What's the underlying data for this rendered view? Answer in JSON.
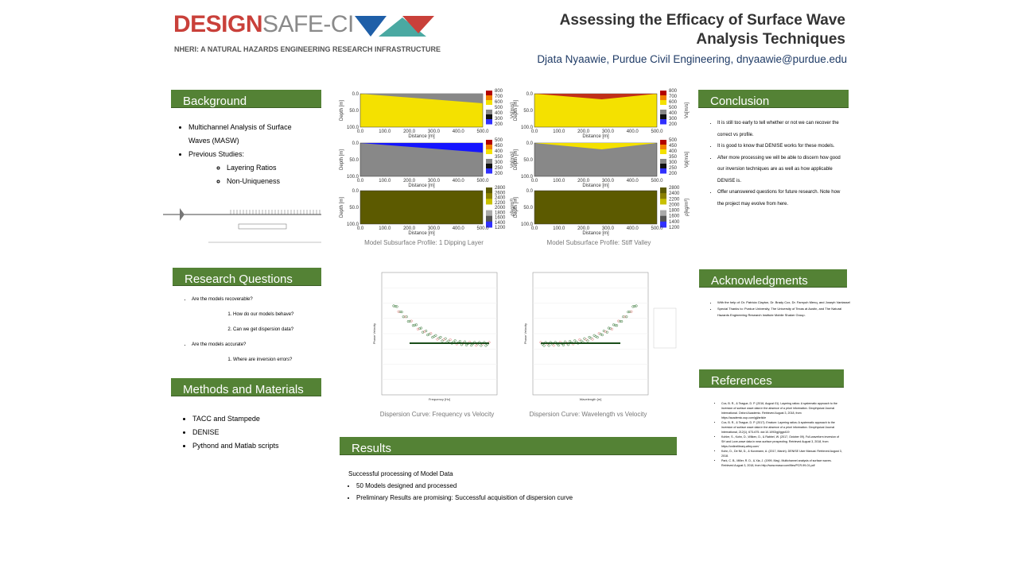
{
  "header": {
    "logo_design": "DESIGN",
    "logo_safe": "SAFE-CI",
    "logo_tagline": "NHERI: A NATURAL HAZARDS ENGINEERING RESEARCH INFRASTRUCTURE",
    "title": "Assessing the Efficacy of Surface Wave Analysis Techniques",
    "author": "Djata Nyaawie, Purdue Civil Engineering, dnyaawie@purdue.edu"
  },
  "background": {
    "heading": "Background",
    "items": [
      {
        "text": "Multichannel Analysis of Surface Waves (MASW)"
      },
      {
        "text": "Previous Studies:",
        "subitems": [
          "Layering Ratios",
          "Non-Uniqueness"
        ]
      }
    ]
  },
  "research_questions": {
    "heading": "Research Questions",
    "items": [
      {
        "text": "Are the models recoverable?",
        "subitems": [
          "How do our models behave?",
          "Can we get dispersion data?"
        ]
      },
      {
        "text": "Are the models accurate?",
        "subitems": [
          "Where are inversion errors?"
        ]
      }
    ]
  },
  "methods": {
    "heading": "Methods and Materials",
    "items": [
      "TACC and Stampede",
      "DENISE",
      "Pythond and Matlab scripts"
    ]
  },
  "profiles": {
    "depth_label": "Depth [m]",
    "distance_label": "Distance [m]",
    "distance_ticks": [
      "0.0",
      "100.0",
      "200.0",
      "300.0",
      "400.0",
      "500.0"
    ],
    "depth_ticks": [
      "0.0",
      "50.0",
      "100.0"
    ],
    "columns": [
      {
        "caption": "Model Subsurface Profile: 1 Dipping Layer",
        "panels": [
          {
            "unit": "Vs[m/s]",
            "ticks": [
              "800",
              "700",
              "600",
              "500",
              "400",
              "300",
              "200"
            ]
          },
          {
            "unit": "Vp[m/s]",
            "ticks": [
              "500",
              "450",
              "400",
              "350",
              "300",
              "250",
              "200"
            ]
          },
          {
            "unit": "ρ[kg/m³]",
            "ticks": [
              "2800",
              "2600",
              "2400",
              "2200",
              "2000",
              "1800",
              "1600",
              "1400",
              "1200"
            ]
          }
        ]
      },
      {
        "caption": "Model Subsurface Profile: Stiff Valley",
        "panels": [
          {
            "unit": "Vs[m/s]",
            "ticks": [
              "800",
              "700",
              "600",
              "500",
              "400",
              "300",
              "200"
            ]
          },
          {
            "unit": "Vp[m/s]",
            "ticks": [
              "500",
              "450",
              "400",
              "350",
              "300",
              "250",
              "200"
            ]
          },
          {
            "unit": "ρ[kg/m³]",
            "ticks": [
              "2800",
              "2400",
              "2200",
              "2000",
              "1800",
              "1600",
              "1400",
              "1200"
            ]
          }
        ]
      }
    ]
  },
  "dispersion": {
    "plots": [
      {
        "caption": "Dispersion Curve: Frequency vs Velocity",
        "x_label": "Frequency [Hz]",
        "y_label": "Phase Velocity"
      },
      {
        "caption": "Dispersion Curve: Wavelength vs Velocity",
        "x_label": "Wavelength [m]",
        "y_label": "Phase Velocity"
      }
    ]
  },
  "results": {
    "heading": "Results",
    "intro": "Successful processing of Model Data",
    "items": [
      "50 Models designed and processed",
      "Preliminary Results are promising: Successful acquisition of dispersion curve"
    ]
  },
  "conclusion": {
    "heading": "Conclusion",
    "items": [
      "It is still too early to tell whether or not we can recover the correct vs profile.",
      "It is good to know that DENISE works for these models.",
      "After more processing we will be able to discern how good our inversion techniques are as well as how applicable DENISE is.",
      "Offer unanswered questions for future research. Note how the project may evolve from here."
    ]
  },
  "acknowledgments": {
    "heading": "Acknowledgments",
    "items": [
      "With the help of: Dr. Patricia Clayton, Dr. Brady Cox, Dr. Farnyuh Menq, and Joseph Vantassel",
      "Special Thanks to: Purdue University, The University of Texas at Austin, and The Natural Hazards Engineering Research Institute Mobile Shaker Group."
    ]
  },
  "references": {
    "heading": "References",
    "items": [
      "Cox, B. R., & Teague, D. P. (2016, August 01). Layering ratios: A systematic approach to the inversion of surface wave data in the absence of a priori information. Geophysical Journal International. Oxford Academic. Retrieved August 3, 2018, from https://academic.oup.com/gji/article",
      "Cox, B. R., & Teague, D. P. (2017). Erratum: Layering ratios: A systematic approach to the inversion of surface wave data in the absence of a priori information. Geophysical Journal International, 212(1), 673-675. doi:10.1093/gji/ggx419",
      "Kohler, S., Kohn, D., Wilken, D., & Rabbel, W. (2017, October 09). Full-waveform inversion of SH and Love-wave data in near-surface prospecting. Retrieved August 3, 2018, from https://onlinelibrary.wiley.com/",
      "Kohn, D., De Nil, D., & Kurzmann, A. (2017, March). DENISE User Manual. Retrieved August 3, 2018.",
      "Park, C. B., Miller, R. D., & Xia, J. (1999, May). Multichannel analysis of surface waves. Retrieved August 3, 2018, from http://www.masw.com/files/PCR-99-01.pdf"
    ]
  }
}
